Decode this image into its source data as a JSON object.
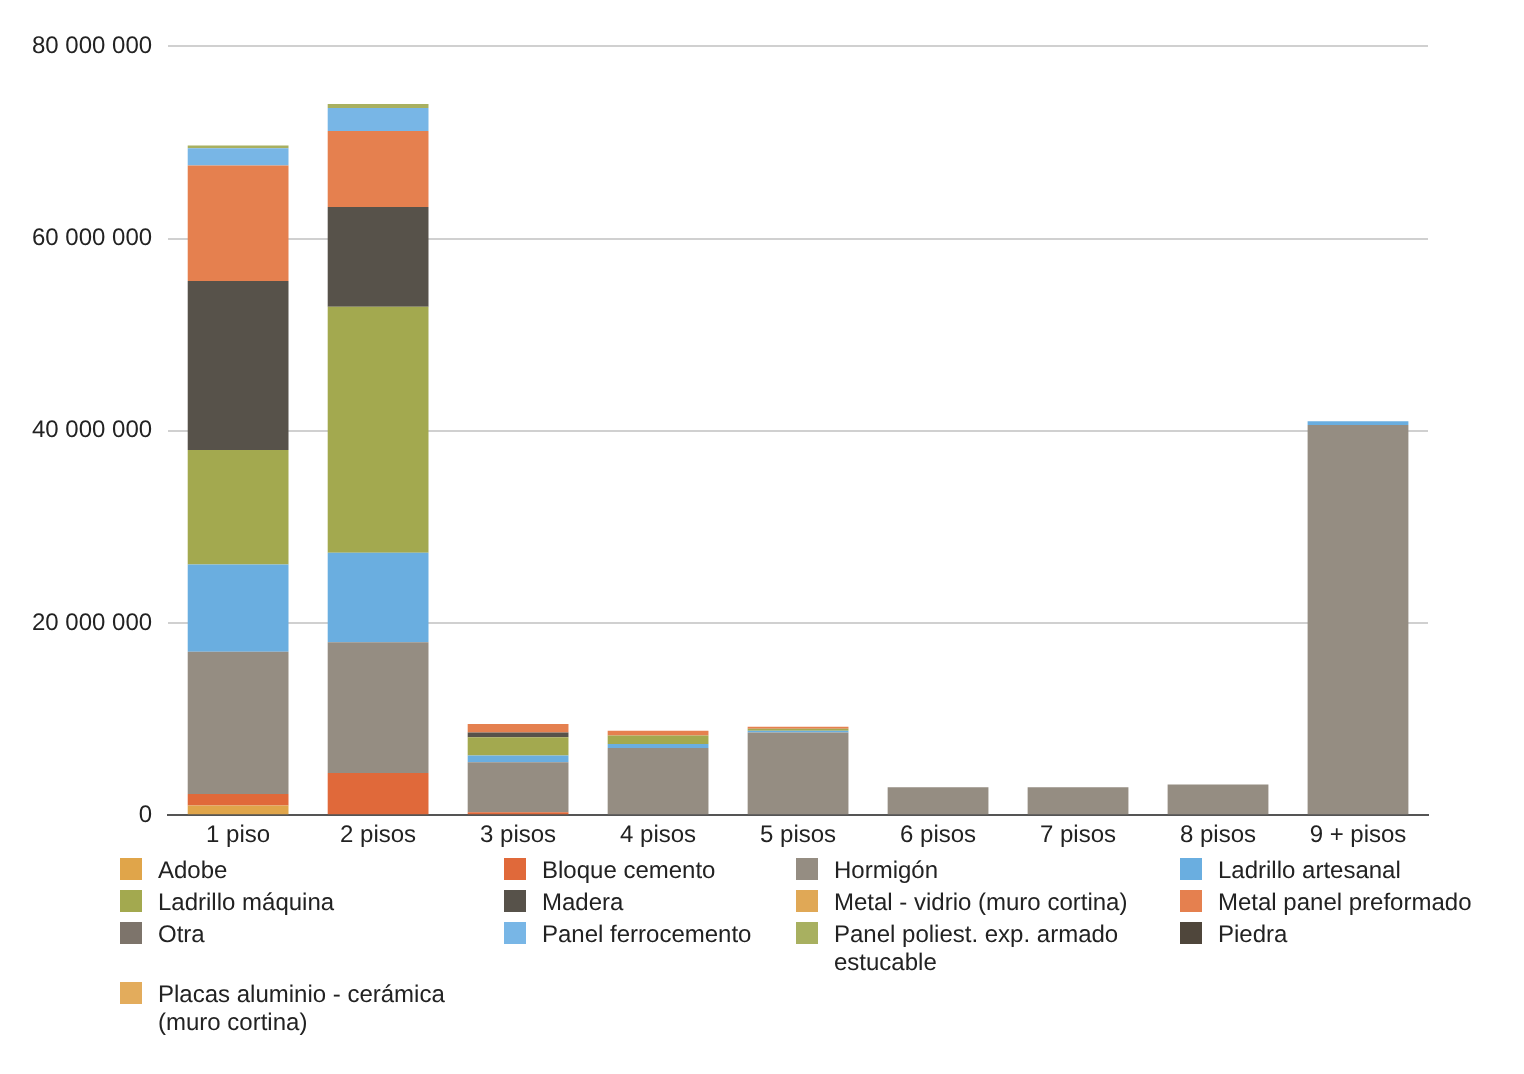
{
  "chart_data": {
    "type": "bar",
    "stacked": true,
    "categories": [
      "1 piso",
      "2 pisos",
      "3 pisos",
      "4 pisos",
      "5 pisos",
      "6 pisos",
      "7 pisos",
      "8 pisos",
      "9 + pisos"
    ],
    "series": [
      {
        "name": "Adobe",
        "color": "#e0a54a",
        "values": [
          1000000,
          0,
          0,
          0,
          0,
          0,
          0,
          0,
          0
        ]
      },
      {
        "name": "Bloque cemento",
        "color": "#e0693a",
        "values": [
          1200000,
          4400000,
          300000,
          0,
          0,
          0,
          0,
          0,
          0
        ]
      },
      {
        "name": "Hormigón",
        "color": "#958d82",
        "values": [
          14800000,
          13600000,
          5200000,
          7000000,
          8600000,
          2900000,
          2900000,
          3200000,
          40600000
        ]
      },
      {
        "name": "Ladrillo artesanal",
        "color": "#6aaee0",
        "values": [
          9100000,
          9300000,
          700000,
          400000,
          200000,
          0,
          0,
          0,
          400000
        ]
      },
      {
        "name": "Ladrillo máquina",
        "color": "#a3a94f",
        "values": [
          11900000,
          25600000,
          1900000,
          900000,
          200000,
          0,
          0,
          0,
          0
        ]
      },
      {
        "name": "Madera",
        "color": "#57524a",
        "values": [
          17600000,
          10400000,
          500000,
          0,
          0,
          0,
          0,
          0,
          0
        ]
      },
      {
        "name": "Metal - vidrio (muro cortina)",
        "color": "#e0a856",
        "values": [
          0,
          0,
          0,
          0,
          0,
          0,
          0,
          0,
          0
        ]
      },
      {
        "name": "Metal panel preformado",
        "color": "#e5804f",
        "values": [
          12000000,
          7900000,
          900000,
          500000,
          200000,
          0,
          0,
          0,
          0
        ]
      },
      {
        "name": "Otra",
        "color": "#7d746b",
        "values": [
          0,
          0,
          0,
          0,
          0,
          0,
          0,
          0,
          0
        ]
      },
      {
        "name": "Panel ferrocemento",
        "color": "#78b6e6",
        "values": [
          1800000,
          2400000,
          0,
          0,
          0,
          0,
          0,
          0,
          0
        ]
      },
      {
        "name": "Panel poliest. exp. armado estucable",
        "color": "#a8b060",
        "values": [
          300000,
          400000,
          0,
          0,
          0,
          0,
          0,
          0,
          0
        ]
      },
      {
        "name": "Piedra",
        "color": "#4f463b",
        "values": [
          0,
          0,
          0,
          0,
          0,
          0,
          0,
          0,
          0
        ]
      },
      {
        "name": "Placas aluminio - cerámica (muro cortina)",
        "color": "#e3ac5c",
        "values": [
          0,
          0,
          0,
          0,
          0,
          0,
          0,
          0,
          0
        ]
      }
    ],
    "ylim": [
      0,
      80000000
    ],
    "yticks": [
      {
        "value": 0,
        "label": "0"
      },
      {
        "value": 20000000,
        "label": "20 000 000"
      },
      {
        "value": 40000000,
        "label": "40 000 000"
      },
      {
        "value": 60000000,
        "label": "60 000 000"
      },
      {
        "value": 80000000,
        "label": "80 000 000"
      }
    ],
    "grid": "y",
    "legend": "bottom"
  }
}
